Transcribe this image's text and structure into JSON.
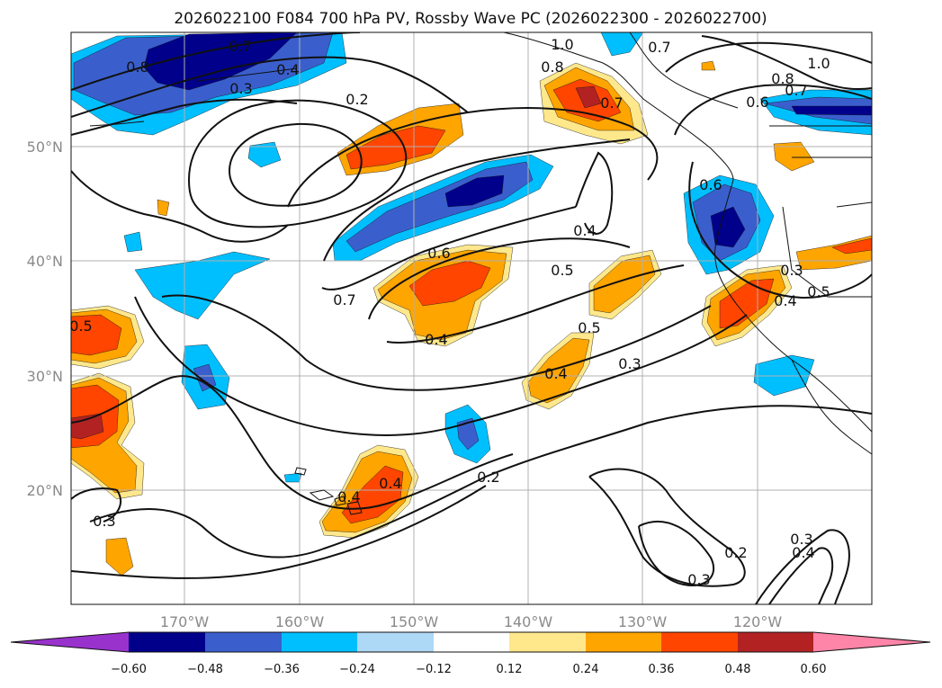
{
  "title": "2026022100 F084 700 hPa PV, Rossby Wave PC (2026022300 - 2026022700)",
  "lon_ticks": [
    "170°W",
    "160°W",
    "150°W",
    "140°W",
    "130°W",
    "120°W"
  ],
  "lat_ticks": [
    "50°N",
    "40°N",
    "30°N",
    "20°N"
  ],
  "colorbar": {
    "colors": [
      "#9932CC",
      "#00008B",
      "#3A5FCD",
      "#00BFFF",
      "#ADD8F6",
      "#FFFFFF",
      "#FFE88C",
      "#FFA500",
      "#FF4500",
      "#B22222",
      "#FF85A8"
    ],
    "tick_labels": [
      "−0.60",
      "−0.48",
      "−0.36",
      "−0.24",
      "−0.12",
      "0.12",
      "0.24",
      "0.36",
      "0.48",
      "0.60"
    ]
  },
  "contour_labels": [
    "0.7",
    "0.8",
    "0.4",
    "0.3",
    "0.2",
    "1.0",
    "0.8",
    "0.7",
    "0.7",
    "0.8",
    "1.0",
    "0.7",
    "0.6",
    "0.6",
    "0.4",
    "0.6",
    "0.5",
    "0.7",
    "0.4",
    "0.5",
    "0.4",
    "0.3",
    "0.3",
    "0.4",
    "0.5",
    "0.5",
    "0.2",
    "0.4",
    "0.4",
    "0.3",
    "0.2",
    "0.3",
    "0.3",
    "0.4"
  ]
}
